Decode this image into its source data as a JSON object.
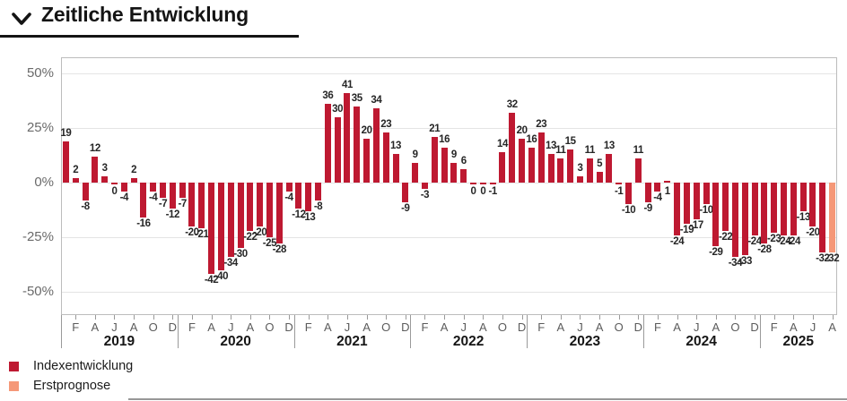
{
  "header": {
    "title": "Zeitliche Entwicklung"
  },
  "legend": {
    "items": [
      {
        "label": "Indexentwicklung",
        "color": "#be1931"
      },
      {
        "label": "Erstprognose",
        "color": "#f59878"
      }
    ]
  },
  "chart_data": {
    "type": "bar",
    "title": "Zeitliche Entwicklung",
    "unit": "%",
    "ylim": [
      -50,
      50
    ],
    "grid": true,
    "legend_position": "bottom-left",
    "y_ticks": [
      {
        "label": "50%",
        "value": 50
      },
      {
        "label": "25%",
        "value": 25
      },
      {
        "label": "0%",
        "value": 0
      },
      {
        "label": "-25%",
        "value": -25
      },
      {
        "label": "-50%",
        "value": -50
      }
    ],
    "month_tick_letters": [
      "F",
      "A",
      "J",
      "A",
      "O",
      "D"
    ],
    "series_colors": {
      "index": "#be1931",
      "prognose": "#f59878"
    },
    "years": [
      {
        "label": "2019",
        "values": [
          19,
          2,
          -8,
          12,
          3,
          0,
          -4,
          2,
          -16,
          -4,
          -7,
          -12
        ]
      },
      {
        "label": "2020",
        "values": [
          -7,
          -20,
          -21,
          -42,
          -40,
          -34,
          -30,
          -22,
          -20,
          -25,
          -28,
          -4
        ]
      },
      {
        "label": "2021",
        "values": [
          -12,
          -13,
          -8,
          36,
          30,
          41,
          35,
          20,
          34,
          23,
          13,
          -9
        ]
      },
      {
        "label": "2022",
        "values": [
          9,
          -3,
          21,
          16,
          9,
          6,
          0,
          0,
          -1,
          14,
          32,
          20
        ]
      },
      {
        "label": "2023",
        "values": [
          16,
          23,
          13,
          11,
          15,
          3,
          11,
          5,
          13,
          -1,
          -10,
          11
        ]
      },
      {
        "label": "2024",
        "values": [
          -9,
          -4,
          1,
          -24,
          -19,
          -17,
          -10,
          -29,
          -22,
          -34,
          -33,
          -24
        ]
      },
      {
        "label": "2025",
        "values": [
          -28,
          -23,
          -24,
          -24,
          -13,
          -20,
          -32,
          -32
        ],
        "prognose_months": [
          7
        ]
      }
    ]
  }
}
